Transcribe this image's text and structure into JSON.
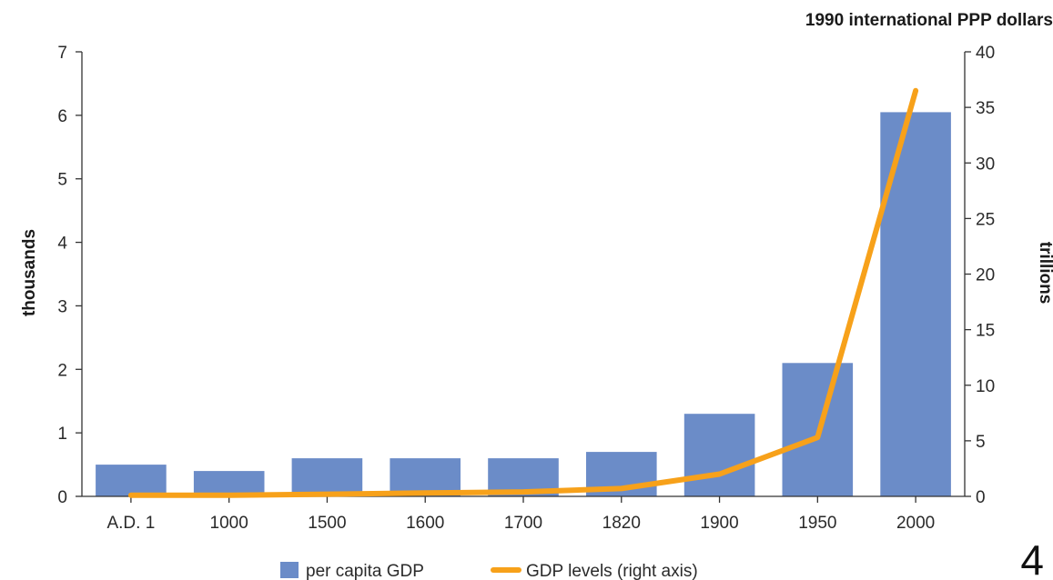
{
  "chart_data": {
    "type": "bar",
    "categories": [
      "A.D. 1",
      "1000",
      "1500",
      "1600",
      "1700",
      "1820",
      "1900",
      "1950",
      "2000"
    ],
    "series": [
      {
        "name": "per capita GDP",
        "type": "bar",
        "axis": "left",
        "color": "#6b8cc8",
        "values": [
          0.5,
          0.4,
          0.6,
          0.6,
          0.6,
          0.7,
          1.3,
          2.1,
          6.05
        ]
      },
      {
        "name": "GDP levels (right axis)",
        "type": "line",
        "axis": "right",
        "color": "#f7a11a",
        "values": [
          0.1,
          0.1,
          0.2,
          0.3,
          0.4,
          0.7,
          2.0,
          5.3,
          36.5
        ]
      }
    ],
    "unit_label": "1990 international PPP dollars",
    "ylabel_left": "thousands",
    "ylabel_right": "trillions",
    "ylim_left": [
      0,
      7
    ],
    "yticks_left": [
      0,
      1,
      2,
      3,
      4,
      5,
      6,
      7
    ],
    "ylim_right": [
      0,
      40
    ],
    "yticks_right": [
      0,
      5,
      10,
      15,
      20,
      25,
      30,
      35,
      40
    ],
    "grid": false,
    "legend_position": "bottom-center"
  },
  "slide_number": "4"
}
